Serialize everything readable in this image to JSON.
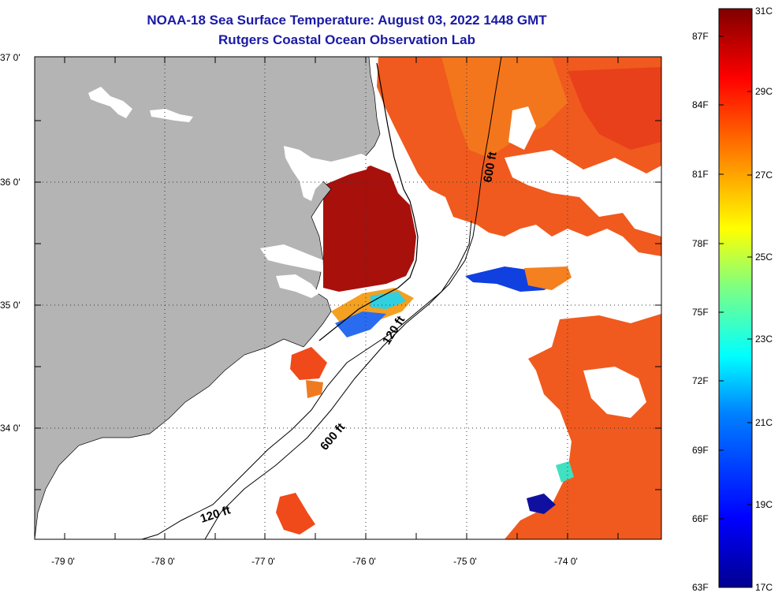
{
  "header": {
    "title": "NOAA-18 Sea Surface Temperature:  August 03, 2022 1448 GMT",
    "subtitle": "Rutgers Coastal Ocean Observation Lab"
  },
  "map": {
    "longitude_labels": [
      "-79 0'",
      "-78 0'",
      "-77 0'",
      "-76 0'",
      "-75 0'",
      "-74 0'"
    ],
    "latitude_labels": [
      "37 0'",
      "36 0'",
      "35 0'",
      "34 0'"
    ],
    "contour_labels": [
      "600 ft",
      "120 ft",
      "600 ft",
      "120 ft"
    ],
    "colors": {
      "land": "#b4b4b4",
      "ocean_nodata": "#ffffff",
      "grid": "#444444"
    }
  },
  "colorbar": {
    "fahrenheit_labels": [
      "87F",
      "84F",
      "81F",
      "78F",
      "75F",
      "72F",
      "69F",
      "66F",
      "63F"
    ],
    "celsius_labels": [
      "31C",
      "29C",
      "27C",
      "25C",
      "23C",
      "21C",
      "19C",
      "17C"
    ],
    "colormap": [
      "#00008f",
      "#0000ff",
      "#0080ff",
      "#00ffff",
      "#80ff80",
      "#ffff00",
      "#ff8000",
      "#ff0000",
      "#800000"
    ]
  }
}
